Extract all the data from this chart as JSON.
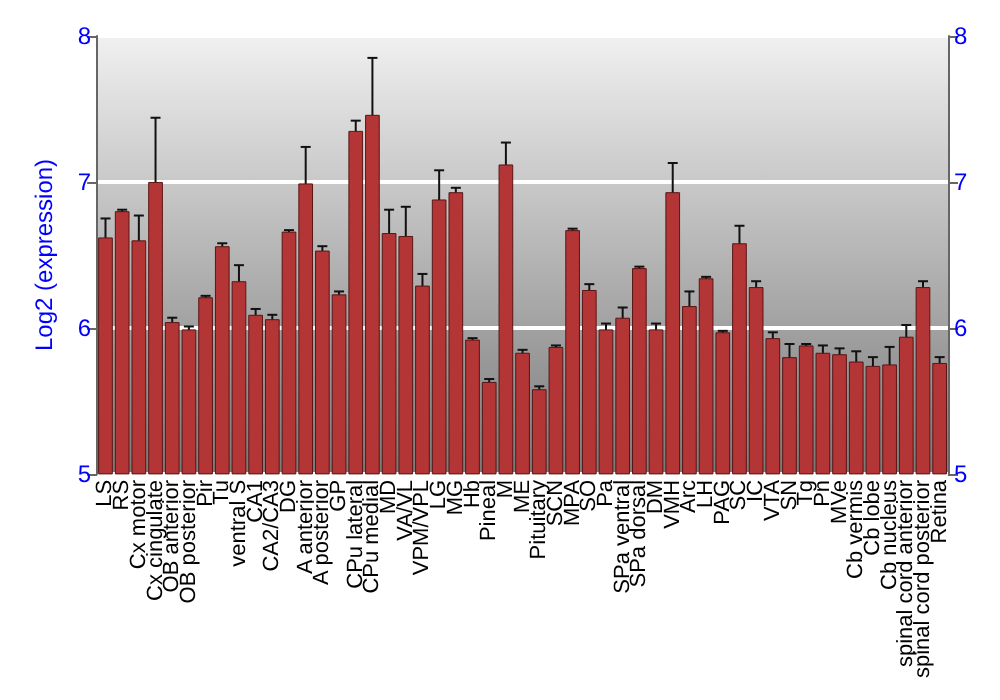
{
  "chart_data": {
    "type": "bar",
    "ylabel": "Log2 (expression)",
    "categories": [
      "LS",
      "RS",
      "Cx motor",
      "Cx cingulate",
      "OB anterior",
      "OB posterior",
      "Pir",
      "Tu",
      "ventral S",
      "CA1",
      "CA2/CA3",
      "DG",
      "A anterior",
      "A posterior",
      "GP",
      "CPu lateral",
      "CPu medial",
      "MD",
      "VA/VL",
      "VPM/VPL",
      "LG",
      "MG",
      "Hb",
      "Pineal",
      "M",
      "ME",
      "Pituitary",
      "SCN",
      "MPA",
      "SO",
      "Pa",
      "SPa ventral",
      "SPa dorsal",
      "DM",
      "VMH",
      "Arc",
      "LH",
      "PAG",
      "SC",
      "IC",
      "VTA",
      "SN",
      "Tg",
      "Pn",
      "MVe",
      "Cb vermis",
      "Cb lobe",
      "Cb nucleus",
      "spinal cord anterior",
      "spinal cord posterior",
      "Retina"
    ],
    "series": [
      {
        "color": "#b33535",
        "values": [
          6.62,
          6.8,
          6.6,
          7.0,
          6.04,
          5.99,
          6.21,
          6.56,
          6.32,
          6.09,
          6.06,
          6.66,
          6.99,
          6.53,
          6.23,
          7.35,
          7.46,
          6.65,
          6.63,
          6.29,
          6.88,
          6.93,
          5.92,
          5.63,
          7.12,
          5.83,
          5.58,
          5.87,
          6.67,
          6.26,
          5.99,
          6.07,
          6.41,
          5.99,
          6.93,
          6.15,
          6.34,
          5.97,
          6.58,
          6.28,
          5.93,
          5.8,
          5.88,
          5.83,
          5.82,
          5.77,
          5.74,
          5.75,
          5.94,
          6.28,
          5.76
        ],
        "errors": [
          0.13,
          0.01,
          0.17,
          0.44,
          0.03,
          0.02,
          0.01,
          0.02,
          0.11,
          0.04,
          0.03,
          0.01,
          0.25,
          0.03,
          0.02,
          0.07,
          0.39,
          0.16,
          0.2,
          0.08,
          0.2,
          0.03,
          0.01,
          0.02,
          0.15,
          0.02,
          0.02,
          0.01,
          0.01,
          0.04,
          0.04,
          0.07,
          0.01,
          0.04,
          0.2,
          0.1,
          0.01,
          0.01,
          0.12,
          0.04,
          0.04,
          0.09,
          0.01,
          0.05,
          0.04,
          0.07,
          0.06,
          0.12,
          0.08,
          0.04,
          0.04
        ]
      }
    ],
    "ylim": [
      5,
      8
    ],
    "yticks": [
      5,
      6,
      7,
      8
    ],
    "y2lim": [
      5,
      8
    ],
    "y2ticks": [
      5,
      6,
      7,
      8
    ],
    "grid": "y"
  }
}
